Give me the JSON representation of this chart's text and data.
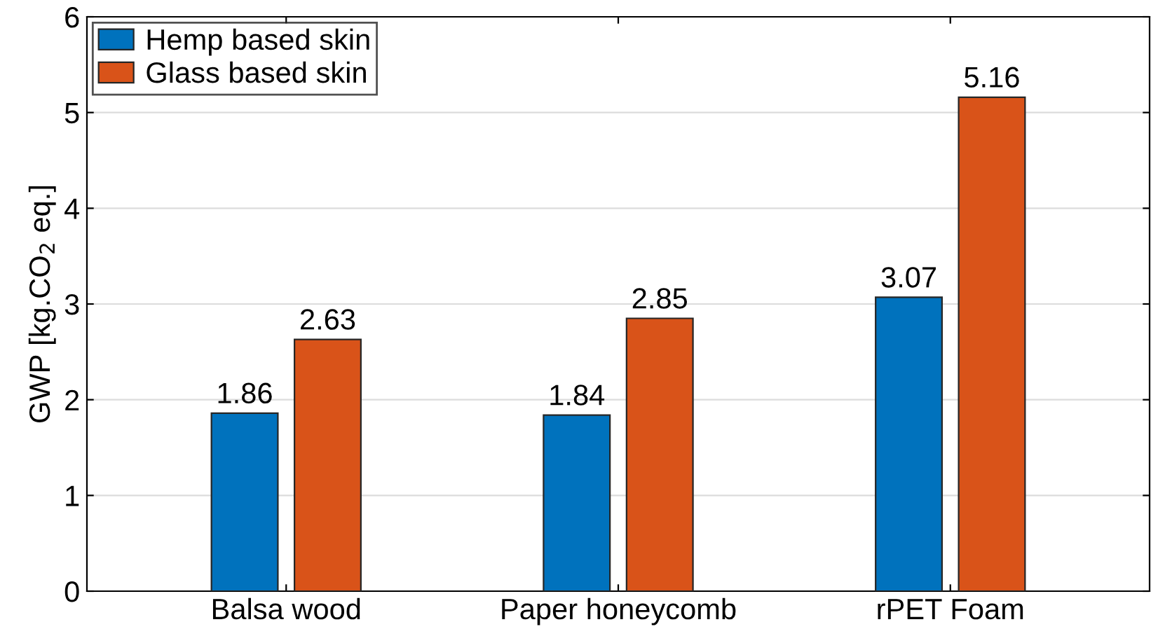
{
  "chart_data": {
    "type": "bar",
    "ylabel": "GWP [kg.CO$_{2}$ eq.]",
    "categories": [
      "Balsa wood",
      "Paper honeycomb",
      "rPET Foam"
    ],
    "series": [
      {
        "name": "Hemp based skin",
        "color": "#0072bd",
        "values": [
          1.86,
          1.84,
          3.07
        ]
      },
      {
        "name": "Glass based skin",
        "color": "#d95319",
        "values": [
          2.63,
          2.85,
          5.16
        ]
      }
    ],
    "ylim": [
      0,
      6
    ],
    "yticks": [
      0,
      1,
      2,
      3,
      4,
      5,
      6
    ],
    "grid": "y",
    "legend": "top left",
    "data_labels": true
  }
}
